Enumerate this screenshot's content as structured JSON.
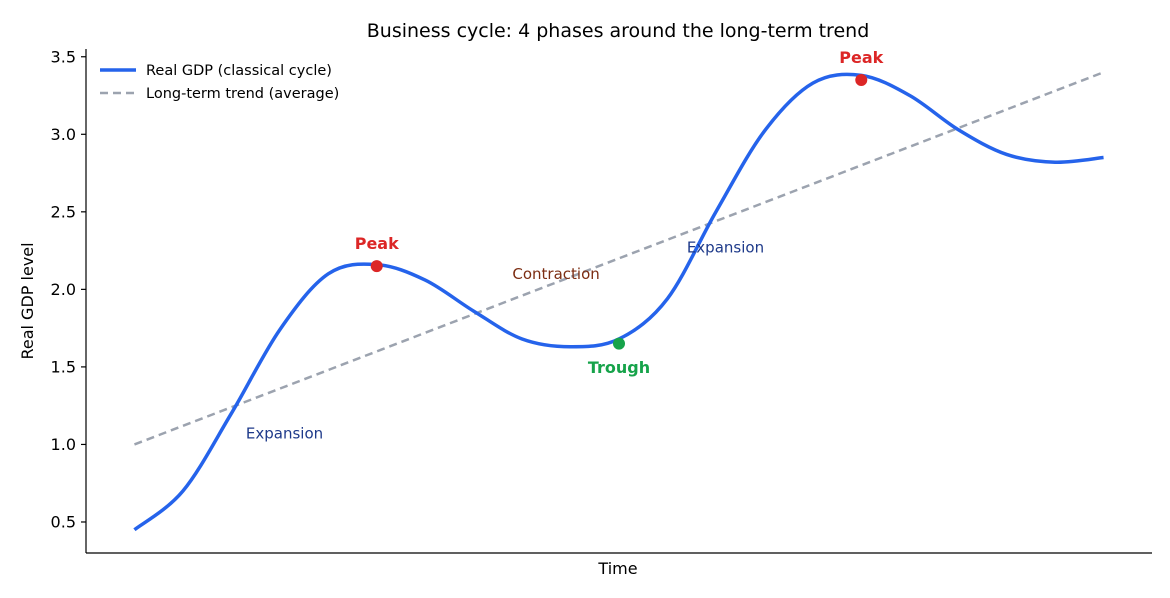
{
  "chart_data": {
    "type": "line",
    "title": "Business cycle: 4 phases around the long-term trend",
    "xlabel": "Time",
    "ylabel": "Real GDP level",
    "xlim": [
      -0.5,
      10.5
    ],
    "ylim": [
      0.3,
      3.55
    ],
    "yticks": [
      0.5,
      1.0,
      1.5,
      2.0,
      2.5,
      3.0,
      3.5
    ],
    "ytick_labels": [
      "0.5",
      "1.0",
      "1.5",
      "2.0",
      "2.5",
      "3.0",
      "3.5"
    ],
    "grid": false,
    "legend": "top-left",
    "series": [
      {
        "name": "Real GDP (classical cycle)",
        "style": "solid",
        "color": "#2563eb",
        "x": [
          0,
          0.5,
          1,
          1.5,
          2,
          2.5,
          3,
          3.5,
          4,
          4.5,
          5,
          5.5,
          6,
          6.5,
          7,
          7.5,
          8,
          8.5,
          9,
          9.5,
          10
        ],
        "y": [
          0.45,
          0.7,
          1.2,
          1.74,
          2.1,
          2.16,
          2.06,
          1.86,
          1.68,
          1.63,
          1.68,
          1.94,
          2.5,
          3.02,
          3.33,
          3.38,
          3.25,
          3.03,
          2.87,
          2.82,
          2.85
        ]
      },
      {
        "name": "Long-term trend (average)",
        "style": "dashed",
        "color": "#9ca3af",
        "x": [
          0,
          10
        ],
        "y": [
          1.0,
          3.4
        ]
      }
    ],
    "markers": [
      {
        "label": "Peak",
        "x": 2.5,
        "y": 2.15,
        "color": "#dc2626",
        "label_dy": 0.15
      },
      {
        "label": "Trough",
        "x": 5.0,
        "y": 1.65,
        "color": "#16a34a",
        "label_dy": -0.15
      },
      {
        "label": "Peak",
        "x": 7.5,
        "y": 3.35,
        "color": "#dc2626",
        "label_dy": 0.15
      }
    ],
    "annotations": [
      {
        "text": "Expansion",
        "x": 1.15,
        "y": 1.07,
        "color": "#1e3a8a"
      },
      {
        "text": "Contraction",
        "x": 3.9,
        "y": 2.1,
        "color": "#7c2d12"
      },
      {
        "text": "Expansion",
        "x": 5.7,
        "y": 2.27,
        "color": "#1e3a8a"
      }
    ]
  }
}
